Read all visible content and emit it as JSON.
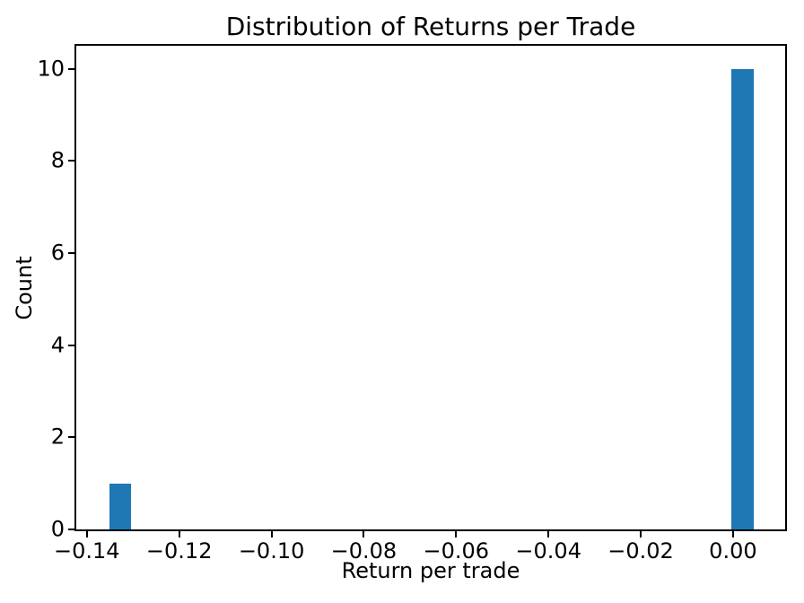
{
  "chart_data": {
    "type": "bar",
    "subtype": "histogram",
    "title": "Distribution of Returns per Trade",
    "xlabel": "Return per trade",
    "ylabel": "Count",
    "bar_color": "#1f77b4",
    "axis_color": "#000000",
    "background_color": "#ffffff",
    "grid": false,
    "legend": null,
    "xlim": [
      -0.1423,
      0.0113
    ],
    "ylim": [
      0,
      10.5
    ],
    "x_ticks": [
      {
        "value": -0.14,
        "label": "−0.14"
      },
      {
        "value": -0.12,
        "label": "−0.12"
      },
      {
        "value": -0.1,
        "label": "−0.10"
      },
      {
        "value": -0.08,
        "label": "−0.08"
      },
      {
        "value": -0.06,
        "label": "−0.06"
      },
      {
        "value": -0.04,
        "label": "−0.04"
      },
      {
        "value": -0.02,
        "label": "−0.02"
      },
      {
        "value": 0.0,
        "label": "0.00"
      }
    ],
    "y_ticks": [
      {
        "value": 0,
        "label": "0"
      },
      {
        "value": 2,
        "label": "2"
      },
      {
        "value": 4,
        "label": "4"
      },
      {
        "value": 6,
        "label": "6"
      },
      {
        "value": 8,
        "label": "8"
      },
      {
        "value": 10,
        "label": "10"
      }
    ],
    "bars": [
      {
        "bin_start": -0.1351,
        "bin_end": -0.1305,
        "count": 1
      },
      {
        "bin_start": -0.0004,
        "bin_end": 0.0045,
        "count": 10
      }
    ]
  }
}
